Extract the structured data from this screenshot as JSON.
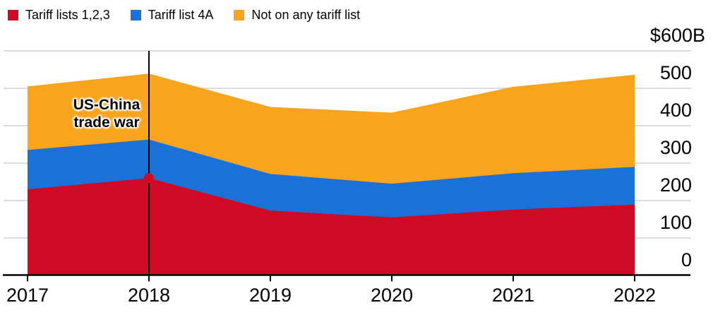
{
  "legend": {
    "items": [
      {
        "label": "Tariff lists 1,2,3",
        "color": "#ce0a24"
      },
      {
        "label": "Tariff list 4A",
        "color": "#1a72d8"
      },
      {
        "label": "Not on any tariff list",
        "color": "#f9a41d"
      }
    ]
  },
  "chart_data": {
    "type": "area",
    "stacked": true,
    "x": [
      2017,
      2018,
      2019,
      2020,
      2021,
      2022
    ],
    "x_tick_labels": [
      "2017",
      "2018",
      "2019",
      "2020",
      "2021",
      "2022"
    ],
    "series": [
      {
        "name": "Tariff lists 1,2,3",
        "color": "#ce0a24",
        "values": [
          230,
          260,
          173,
          155,
          176,
          189
        ]
      },
      {
        "name": "Tariff list 4A",
        "color": "#1a72d8",
        "values": [
          105,
          103,
          98,
          90,
          97,
          101
        ]
      },
      {
        "name": "Not on any tariff list",
        "color": "#f9a41d",
        "values": [
          170,
          176,
          179,
          190,
          231,
          246
        ]
      }
    ],
    "totals": [
      505,
      539,
      450,
      435,
      504,
      536
    ],
    "ylim": [
      0,
      600
    ],
    "y_ticks": [
      {
        "value": 600,
        "label": "$600B"
      },
      {
        "value": 500,
        "label": "500"
      },
      {
        "value": 400,
        "label": "400"
      },
      {
        "value": 300,
        "label": "300"
      },
      {
        "value": 200,
        "label": "200"
      },
      {
        "value": 100,
        "label": "100"
      },
      {
        "value": 0,
        "label": "0"
      }
    ],
    "y_axis_side": "right",
    "grid": "horizontal",
    "grid_color": "#dcdcdc",
    "axis_color": "#000000",
    "legend_position": "top-left",
    "annotations": [
      {
        "text": "US-China\ntrade war",
        "x": 2018,
        "vertical_line": true,
        "line_color": "#000000",
        "marker_value": 260,
        "marker_color": "#d40a24"
      }
    ]
  }
}
